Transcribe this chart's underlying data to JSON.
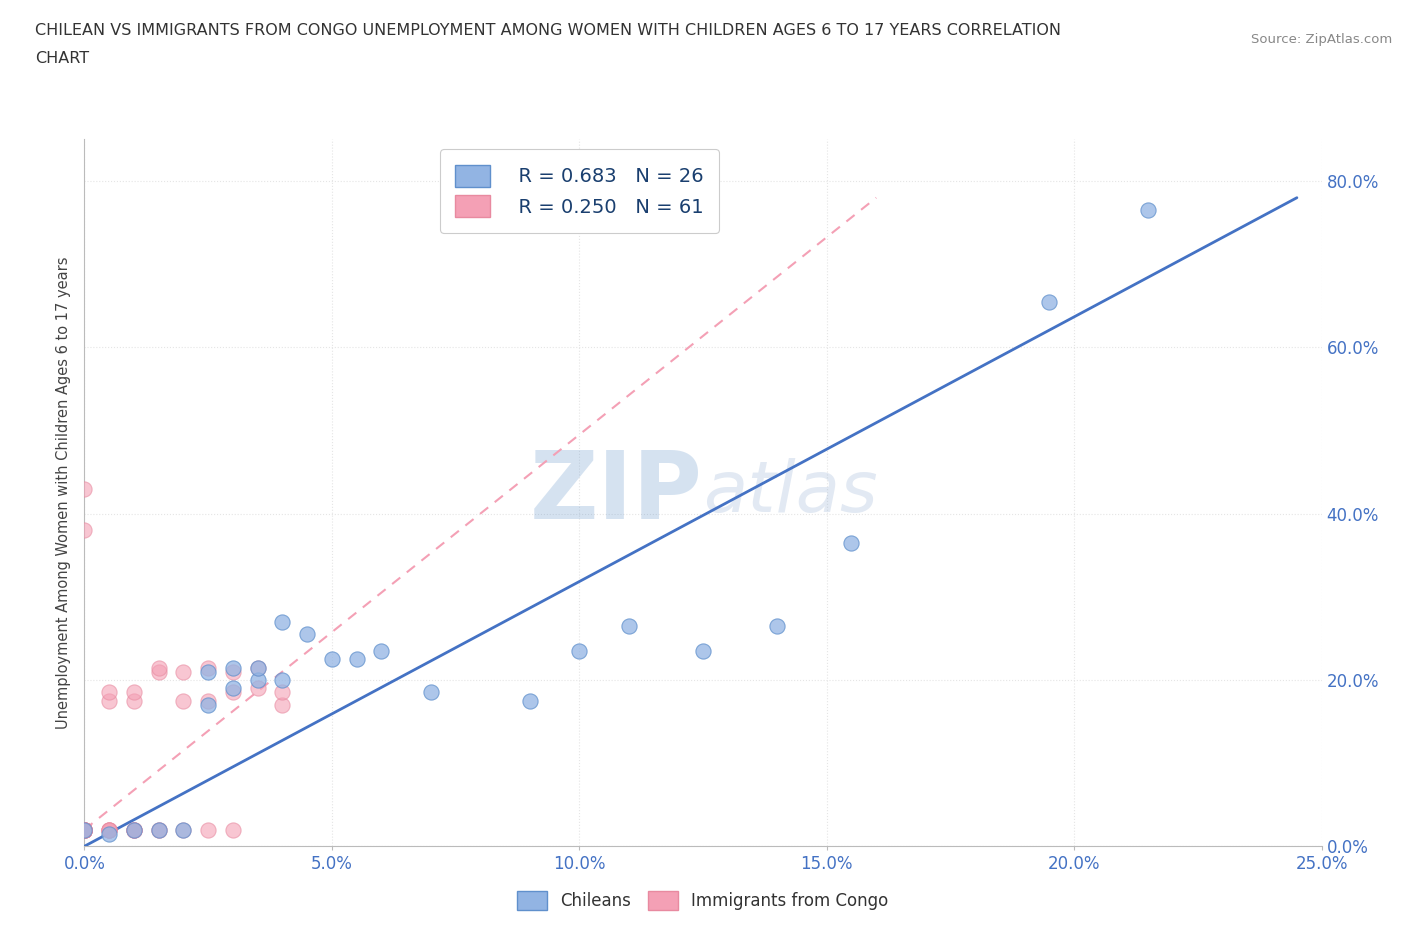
{
  "title_line1": "CHILEAN VS IMMIGRANTS FROM CONGO UNEMPLOYMENT AMONG WOMEN WITH CHILDREN AGES 6 TO 17 YEARS CORRELATION",
  "title_line2": "CHART",
  "source": "Source: ZipAtlas.com",
  "xlabel_ticks": [
    "0.0%",
    "5.0%",
    "10.0%",
    "15.0%",
    "20.0%",
    "25.0%"
  ],
  "ylabel_ticks": [
    "0.0%",
    "20.0%",
    "40.0%",
    "60.0%",
    "80.0%"
  ],
  "xlim": [
    0.0,
    0.25
  ],
  "ylim": [
    0.0,
    0.85
  ],
  "legend_r1": "R = 0.683   N = 26",
  "legend_r2": "R = 0.250   N = 61",
  "legend_label1": "Chileans",
  "legend_label2": "Immigrants from Congo",
  "color_blue": "#92b4e3",
  "color_pink": "#f4a0b5",
  "watermark_zip": "ZIP",
  "watermark_atlas": "atlas",
  "watermark_color": "#c8d8ee",
  "blue_scatter": [
    [
      0.0,
      0.02
    ],
    [
      0.005,
      0.015
    ],
    [
      0.01,
      0.02
    ],
    [
      0.015,
      0.02
    ],
    [
      0.02,
      0.02
    ],
    [
      0.025,
      0.17
    ],
    [
      0.025,
      0.21
    ],
    [
      0.03,
      0.19
    ],
    [
      0.03,
      0.215
    ],
    [
      0.035,
      0.2
    ],
    [
      0.035,
      0.215
    ],
    [
      0.04,
      0.2
    ],
    [
      0.04,
      0.27
    ],
    [
      0.045,
      0.255
    ],
    [
      0.05,
      0.225
    ],
    [
      0.055,
      0.225
    ],
    [
      0.06,
      0.235
    ],
    [
      0.07,
      0.185
    ],
    [
      0.09,
      0.175
    ],
    [
      0.1,
      0.235
    ],
    [
      0.11,
      0.265
    ],
    [
      0.125,
      0.235
    ],
    [
      0.14,
      0.265
    ],
    [
      0.155,
      0.365
    ],
    [
      0.195,
      0.655
    ],
    [
      0.215,
      0.765
    ]
  ],
  "pink_scatter": [
    [
      0.0,
      0.02
    ],
    [
      0.0,
      0.02
    ],
    [
      0.0,
      0.02
    ],
    [
      0.0,
      0.02
    ],
    [
      0.0,
      0.02
    ],
    [
      0.0,
      0.02
    ],
    [
      0.0,
      0.02
    ],
    [
      0.0,
      0.02
    ],
    [
      0.0,
      0.02
    ],
    [
      0.0,
      0.02
    ],
    [
      0.0,
      0.02
    ],
    [
      0.0,
      0.02
    ],
    [
      0.0,
      0.02
    ],
    [
      0.0,
      0.02
    ],
    [
      0.0,
      0.02
    ],
    [
      0.0,
      0.02
    ],
    [
      0.0,
      0.02
    ],
    [
      0.0,
      0.02
    ],
    [
      0.0,
      0.02
    ],
    [
      0.0,
      0.02
    ],
    [
      0.0,
      0.02
    ],
    [
      0.0,
      0.02
    ],
    [
      0.0,
      0.02
    ],
    [
      0.0,
      0.02
    ],
    [
      0.0,
      0.02
    ],
    [
      0.0,
      0.02
    ],
    [
      0.0,
      0.02
    ],
    [
      0.0,
      0.02
    ],
    [
      0.0,
      0.02
    ],
    [
      0.0,
      0.02
    ],
    [
      0.005,
      0.02
    ],
    [
      0.005,
      0.02
    ],
    [
      0.005,
      0.02
    ],
    [
      0.005,
      0.02
    ],
    [
      0.01,
      0.02
    ],
    [
      0.01,
      0.02
    ],
    [
      0.01,
      0.02
    ],
    [
      0.01,
      0.02
    ],
    [
      0.015,
      0.02
    ],
    [
      0.015,
      0.02
    ],
    [
      0.015,
      0.21
    ],
    [
      0.015,
      0.215
    ],
    [
      0.02,
      0.02
    ],
    [
      0.02,
      0.21
    ],
    [
      0.025,
      0.02
    ],
    [
      0.025,
      0.215
    ],
    [
      0.03,
      0.02
    ],
    [
      0.03,
      0.21
    ],
    [
      0.035,
      0.215
    ],
    [
      0.04,
      0.17
    ],
    [
      0.02,
      0.175
    ],
    [
      0.025,
      0.175
    ],
    [
      0.03,
      0.185
    ],
    [
      0.035,
      0.19
    ],
    [
      0.04,
      0.185
    ],
    [
      0.0,
      0.38
    ],
    [
      0.0,
      0.43
    ],
    [
      0.005,
      0.175
    ],
    [
      0.005,
      0.185
    ],
    [
      0.01,
      0.175
    ],
    [
      0.01,
      0.185
    ]
  ],
  "blue_line_x": [
    0.0,
    0.245
  ],
  "blue_line_y": [
    0.0,
    0.78
  ],
  "pink_line_x": [
    0.0,
    0.16
  ],
  "pink_line_y": [
    0.02,
    0.78
  ],
  "grid_color": "#e5e5e5",
  "title_color": "#333333",
  "tick_color": "#4472c4",
  "source_color": "#888888"
}
